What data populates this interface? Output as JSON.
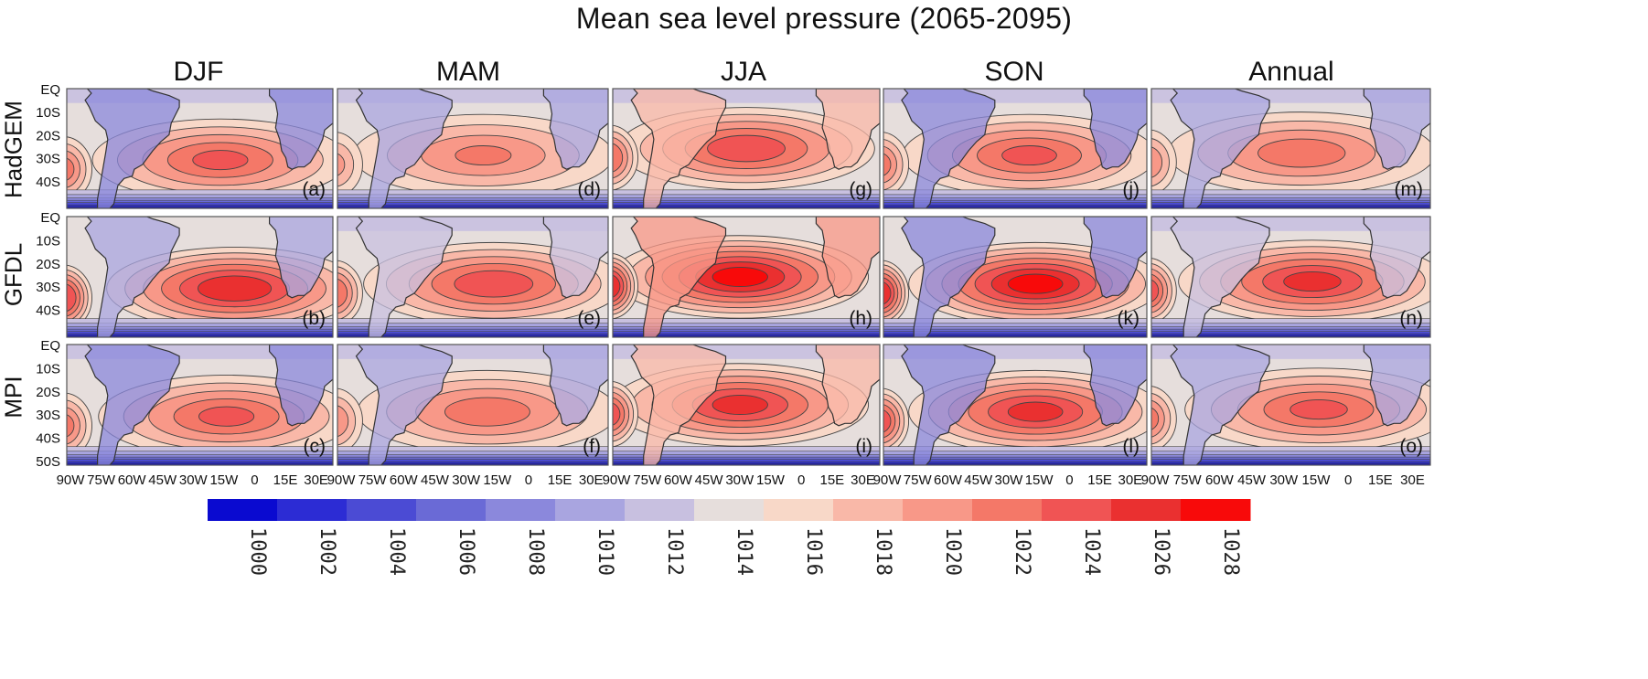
{
  "title": "Mean sea level pressure (2065-2095)",
  "columns": [
    "DJF",
    "MAM",
    "JJA",
    "SON",
    "Annual"
  ],
  "rows": [
    "HadGEM",
    "GFDL",
    "MPI"
  ],
  "panel_letters": [
    [
      "(a)",
      "(d)",
      "(g)",
      "(j)",
      "(m)"
    ],
    [
      "(b)",
      "(e)",
      "(h)",
      "(k)",
      "(n)"
    ],
    [
      "(c)",
      "(f)",
      "(i)",
      "(l)",
      "(o)"
    ]
  ],
  "colors": {
    "scale": [
      "#0a0ad0",
      "#2c2cd4",
      "#4b4bd4",
      "#6a6ad6",
      "#8b88dc",
      "#a9a5e0",
      "#c8c0e0",
      "#e6dedc",
      "#f8d8c8",
      "#f9b8a8",
      "#f89888",
      "#f47868",
      "#f05454",
      "#ea3030",
      "#f80a0a"
    ],
    "land_line": "#333333",
    "contour": "#444444"
  },
  "chart_data": {
    "type": "heatmap",
    "title": "Mean sea level pressure (2065-2095)",
    "variable": "Mean sea level pressure",
    "period": "2065-2095",
    "x_ticks": [
      "90W",
      "75W",
      "60W",
      "45W",
      "30W",
      "15W",
      "0",
      "15E",
      "30E"
    ],
    "y_ticks_top_rows": [
      "EQ",
      "10S",
      "20S",
      "30S",
      "40S"
    ],
    "y_ticks_bottom_row": [
      "EQ",
      "10S",
      "20S",
      "30S",
      "40S",
      "50S"
    ],
    "x_range_deg": [
      -90,
      40
    ],
    "y_range_deg": [
      -52,
      0
    ],
    "colorbar_ticks": [
      "1000",
      "1002",
      "1004",
      "1006",
      "1008",
      "1010",
      "1012",
      "1014",
      "1016",
      "1018",
      "1020",
      "1022",
      "1024",
      "1026",
      "1028"
    ],
    "colorbar_range": [
      999,
      1029
    ],
    "high_center_value_hPa": [
      [
        1022,
        1020,
        1023,
        1022,
        1021
      ],
      [
        1025,
        1023,
        1026,
        1026,
        1024
      ],
      [
        1022,
        1021,
        1024,
        1024,
        1022
      ]
    ],
    "high_center_lon": [
      [
        -15,
        -20,
        -25,
        -18,
        -20
      ],
      [
        -8,
        -15,
        -28,
        -15,
        -15
      ],
      [
        -12,
        -18,
        -28,
        -15,
        -12
      ]
    ],
    "high_center_lat": [
      -31,
      -29,
      -26,
      -29,
      -28
    ]
  }
}
